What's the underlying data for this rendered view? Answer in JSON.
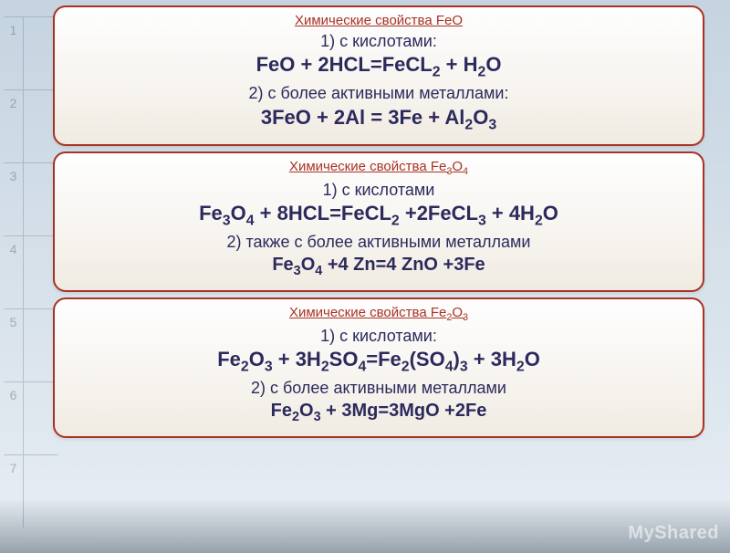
{
  "bg_numbers": [
    "1",
    "2",
    "3",
    "4",
    "5",
    "6",
    "7"
  ],
  "cards": [
    {
      "title": "Химические свойства FeO",
      "rows": [
        {
          "cls": "line-label",
          "html": "1)    с кислотами:"
        },
        {
          "cls": "line-eq",
          "html": "FeO + 2HCL=FeCL<sub>2</sub> + H<sub>2</sub>O"
        },
        {
          "cls": "line-label",
          "html": "2) с более активными металлами:"
        },
        {
          "cls": "line-eq",
          "html": "3FeO + 2Al = 3Fe + Al<sub>2</sub>O<sub>3</sub>"
        }
      ]
    },
    {
      "title": "Химические свойства Fe₃O₄",
      "rows": [
        {
          "cls": "line-label",
          "html": "1)  с кислотами"
        },
        {
          "cls": "line-eq",
          "html": "Fe<sub>3</sub>O<sub>4</sub> + 8HCL=FeCL<sub>2</sub> +2FeCL<sub>3</sub> + 4H<sub>2</sub>O"
        },
        {
          "cls": "line-label",
          "html": "2) также с более активными металлами"
        },
        {
          "cls": "line-eq-sm",
          "html": "Fe<sub>3</sub>O<sub>4</sub> +4 Zn=4 ZnO +3Fe"
        }
      ]
    },
    {
      "title": "Химические свойства Fe₂O₃",
      "rows": [
        {
          "cls": "line-label",
          "html": "1)  с кислотами:"
        },
        {
          "cls": "line-eq",
          "html": "Fe<sub>2</sub>O<sub>3</sub> + 3H<sub>2</sub>SO<sub>4</sub>=Fe<sub>2</sub>(SO<sub>4</sub>)<sub>3</sub> + 3H<sub>2</sub>O"
        },
        {
          "cls": "line-label",
          "html": "2)  с более активными металлами"
        },
        {
          "cls": "line-eq-sm",
          "html": "Fe<sub>2</sub>O<sub>3</sub> + 3Mg=3MgO +2Fe"
        }
      ]
    }
  ],
  "watermark": "MyShared"
}
